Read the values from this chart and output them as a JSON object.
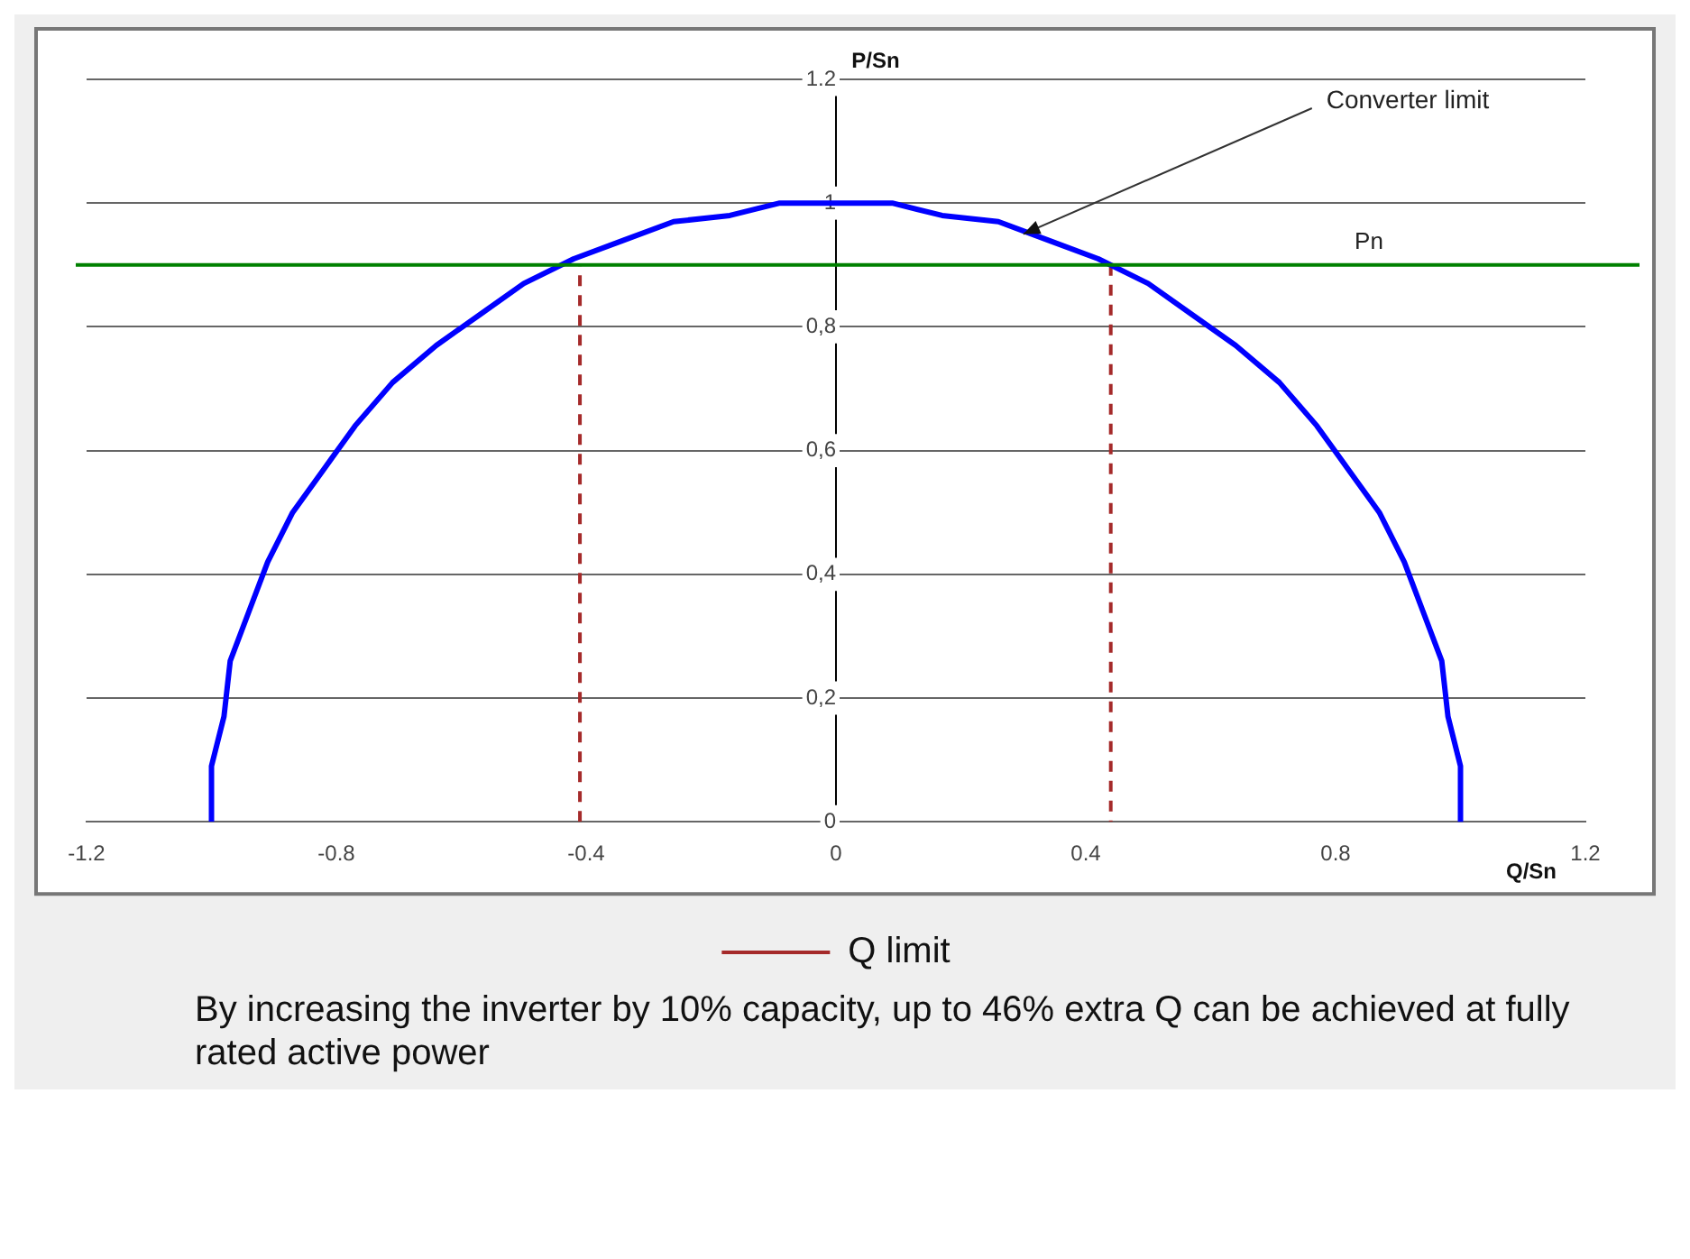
{
  "chart_data": {
    "type": "line",
    "xlabel": "Q/Sn",
    "ylabel": "P/Sn",
    "xlim": [
      -1.2,
      1.2
    ],
    "xticks": [
      -1.2,
      -0.8,
      -0.4,
      0,
      0.4,
      0.8,
      1.2
    ],
    "ylim": [
      0,
      1.2
    ],
    "yticks": [
      0,
      {
        "value": 0.2,
        "label": "0,2"
      },
      {
        "value": 0.4,
        "label": "0,4"
      },
      {
        "value": 0.6,
        "label": "0,6"
      },
      {
        "value": 0.8,
        "label": "0,8"
      },
      1,
      1.2
    ],
    "grid": "y",
    "legend": "bottom",
    "marker": "none",
    "series": [
      {
        "color": "#0000ff",
        "line_style": "solid",
        "x": [
          -1,
          -1,
          -0.98,
          -0.97,
          -0.94,
          -0.91,
          -0.87,
          -0.82,
          -0.77,
          -0.71,
          -0.64,
          -0.57,
          -0.5,
          -0.42,
          -0.34,
          -0.26,
          -0.17,
          -0.09,
          0,
          0.09,
          0.17,
          0.26,
          0.34,
          0.42,
          0.5,
          0.57,
          0.64,
          0.71,
          0.77,
          0.82,
          0.87,
          0.91,
          0.94,
          0.97,
          0.98,
          1,
          1
        ],
        "values": [
          0,
          0.09,
          0.17,
          0.26,
          0.34,
          0.42,
          0.5,
          0.57,
          0.64,
          0.71,
          0.77,
          0.82,
          0.87,
          0.91,
          0.94,
          0.97,
          0.98,
          1,
          1,
          1,
          0.98,
          0.97,
          0.94,
          0.91,
          0.87,
          0.82,
          0.77,
          0.71,
          0.64,
          0.57,
          0.5,
          0.42,
          0.34,
          0.26,
          0.17,
          0.09,
          0
        ]
      },
      {
        "name": "Q limit",
        "color": "#a52a2a",
        "line_style": "dashed",
        "x": [
          -0.41,
          -0.41,
          0,
          0.44,
          0.44
        ],
        "values": [
          0,
          0.9,
          null,
          0.9,
          0
        ]
      }
    ],
    "ref_lines": [
      {
        "axis": "y",
        "value": 0.9,
        "label": "Pn",
        "color": "#008000"
      }
    ],
    "annotations": [
      {
        "text": "Converter limit",
        "x": 0.3,
        "y": 0.95
      },
      "By increasing the inverter by 10% capacity, up to 46% extra Q can be achieved at fully rated active power"
    ]
  }
}
